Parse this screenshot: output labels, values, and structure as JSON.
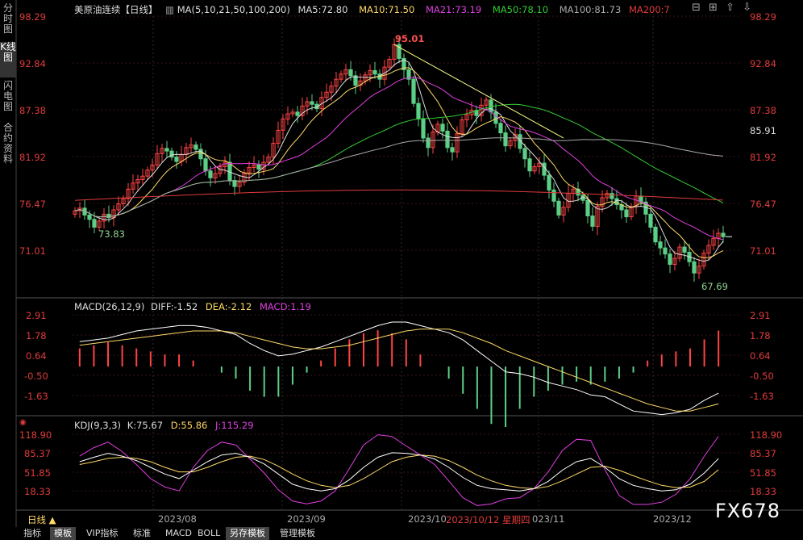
{
  "side_tabs": [
    "分时图",
    "K线图",
    "闪电图",
    "合约资料"
  ],
  "header": {
    "symbol": "美原油连续【日线】",
    "ma": [
      "MA(5,10,21,50,100,200)",
      "MA5:72.80",
      "MA10:71.50",
      "MA21:73.19",
      "MA50:78.10",
      "MA100:81.73",
      "MA200:7"
    ],
    "ma_colors": [
      "#dddddd",
      "#ffffff",
      "#ffd966",
      "#e03fe0",
      "#33cc33",
      "#aaaaaa",
      "#e03b3b"
    ]
  },
  "macd_header": {
    "title": "MACD(26,12,9)",
    "diff": "DIFF:-1.52",
    "dea": "DEA:-2.12",
    "macd": "MACD:1.19"
  },
  "kdj_header": {
    "title": "KDJ(9,3,3)",
    "k": "K:75.67",
    "d": "D:55.86",
    "j": "J:115.29"
  },
  "price_labels": [
    "98.29",
    "92.84",
    "87.38",
    "81.92",
    "76.47",
    "71.01"
  ],
  "macd_labels": [
    "2.91",
    "1.78",
    "0.64",
    "-0.50",
    "-1.63"
  ],
  "kdj_labels": [
    "118.90",
    "85.37",
    "51.85",
    "18.33"
  ],
  "current_price": "85.91",
  "annotations": {
    "high": "95.01",
    "low1": "73.83",
    "low2": "67.69"
  },
  "x_ticks": [
    "2023/08",
    "2023/09",
    "2023/10",
    "2023/10/12 星期四",
    "023/11",
    "2023/12"
  ],
  "period_label": "日线 ▲",
  "bottom_tabs": [
    "指标",
    "模板",
    "VIP指标",
    "标准",
    "MACD",
    "BOLL",
    "另存模板",
    "管理模板"
  ],
  "logo": "FX678",
  "chart_data": {
    "type": "candlestick",
    "price_range": [
      67.69,
      98.29
    ],
    "closes": [
      75.8,
      76.1,
      75.3,
      74.8,
      73.9,
      74.6,
      75.4,
      75.0,
      75.9,
      76.6,
      77.2,
      78.3,
      79.0,
      79.4,
      79.8,
      80.5,
      81.1,
      82.4,
      83.0,
      82.7,
      82.0,
      81.5,
      82.3,
      83.1,
      83.4,
      82.9,
      81.8,
      80.4,
      79.6,
      80.1,
      80.9,
      81.4,
      79.3,
      78.6,
      79.1,
      80.2,
      80.8,
      81.1,
      80.6,
      81.4,
      82.0,
      83.6,
      85.1,
      86.4,
      87.0,
      87.2,
      86.8,
      87.9,
      88.4,
      88.1,
      87.6,
      88.9,
      89.5,
      90.2,
      91.0,
      91.6,
      92.1,
      91.4,
      90.3,
      90.8,
      91.5,
      92.0,
      91.6,
      91.0,
      92.4,
      93.3,
      95.01,
      93.4,
      92.1,
      91.0,
      88.2,
      86.4,
      84.2,
      83.1,
      84.9,
      85.8,
      85.0,
      83.1,
      82.6,
      84.7,
      86.3,
      86.9,
      87.4,
      86.8,
      88.0,
      88.6,
      87.2,
      85.9,
      84.8,
      83.3,
      83.9,
      84.6,
      83.0,
      81.8,
      80.4,
      80.9,
      81.3,
      79.9,
      78.2,
      76.9,
      75.3,
      76.2,
      77.8,
      78.3,
      77.6,
      77.0,
      75.2,
      74.0,
      76.3,
      77.3,
      77.8,
      77.2,
      76.5,
      75.9,
      75.1,
      76.3,
      77.5,
      76.8,
      75.4,
      73.9,
      72.2,
      71.5,
      70.8,
      69.6,
      70.3,
      71.6,
      71.0,
      69.9,
      68.6,
      69.4,
      70.9,
      71.8,
      72.6,
      73.2,
      72.8
    ],
    "macd": {
      "diff": [
        1.4,
        1.5,
        1.6,
        1.8,
        2.0,
        2.1,
        2.2,
        2.3,
        2.3,
        2.2,
        2.0,
        1.8,
        1.3,
        0.9,
        0.6,
        0.7,
        0.9,
        1.1,
        1.4,
        1.7,
        2.0,
        2.3,
        2.5,
        2.5,
        2.3,
        2.1,
        1.9,
        1.5,
        0.9,
        0.3,
        -0.3,
        -0.4,
        -0.6,
        -0.9,
        -1.1,
        -1.3,
        -1.6,
        -1.7,
        -2.1,
        -2.5,
        -2.6,
        -2.7,
        -2.6,
        -2.4,
        -1.9,
        -1.5
      ],
      "dea": [
        1.2,
        1.3,
        1.4,
        1.5,
        1.6,
        1.7,
        1.8,
        1.9,
        2.0,
        2.0,
        2.0,
        1.9,
        1.7,
        1.5,
        1.3,
        1.1,
        1.0,
        1.0,
        1.1,
        1.2,
        1.4,
        1.6,
        1.8,
        2.0,
        2.1,
        2.1,
        2.1,
        1.9,
        1.6,
        1.3,
        0.9,
        0.6,
        0.3,
        0.0,
        -0.3,
        -0.6,
        -0.9,
        -1.2,
        -1.5,
        -1.8,
        -2.1,
        -2.3,
        -2.5,
        -2.5,
        -2.3,
        -2.1
      ],
      "hist": [
        0.6,
        0.7,
        0.8,
        0.7,
        0.6,
        0.5,
        0.4,
        0.4,
        0.2,
        0.0,
        -0.2,
        -0.4,
        -0.8,
        -1.0,
        -1.0,
        -0.6,
        -0.2,
        0.2,
        0.6,
        0.9,
        1.1,
        1.2,
        1.1,
        0.9,
        0.4,
        0.0,
        -0.4,
        -0.9,
        -1.4,
        -1.9,
        -2.0,
        -1.4,
        -1.0,
        -0.8,
        -0.6,
        -0.5,
        -0.6,
        -0.5,
        -0.4,
        -0.2,
        0.2,
        0.4,
        0.5,
        0.6,
        0.9,
        1.19
      ]
    },
    "kdj": {
      "k": [
        70,
        78,
        85,
        80,
        72,
        60,
        48,
        40,
        55,
        70,
        82,
        85,
        78,
        66,
        48,
        30,
        22,
        18,
        22,
        38,
        60,
        78,
        86,
        85,
        82,
        75,
        60,
        42,
        28,
        22,
        20,
        18,
        22,
        35,
        55,
        70,
        76,
        60,
        40,
        28,
        22,
        18,
        20,
        30,
        50,
        75.67
      ],
      "d": [
        65,
        70,
        76,
        78,
        76,
        70,
        60,
        52,
        52,
        60,
        70,
        78,
        80,
        74,
        62,
        48,
        36,
        28,
        24,
        28,
        40,
        55,
        70,
        78,
        82,
        80,
        72,
        60,
        46,
        36,
        28,
        24,
        22,
        26,
        36,
        48,
        60,
        62,
        55,
        45,
        36,
        28,
        24,
        25,
        35,
        55.86
      ],
      "j": [
        80,
        95,
        105,
        88,
        65,
        40,
        25,
        18,
        60,
        90,
        105,
        100,
        75,
        50,
        20,
        0,
        -5,
        0,
        18,
        58,
        100,
        118,
        115,
        98,
        82,
        65,
        36,
        6,
        -8,
        -5,
        4,
        6,
        22,
        52,
        90,
        110,
        108,
        56,
        10,
        -6,
        -6,
        -2,
        12,
        40,
        80,
        115.29
      ]
    }
  }
}
